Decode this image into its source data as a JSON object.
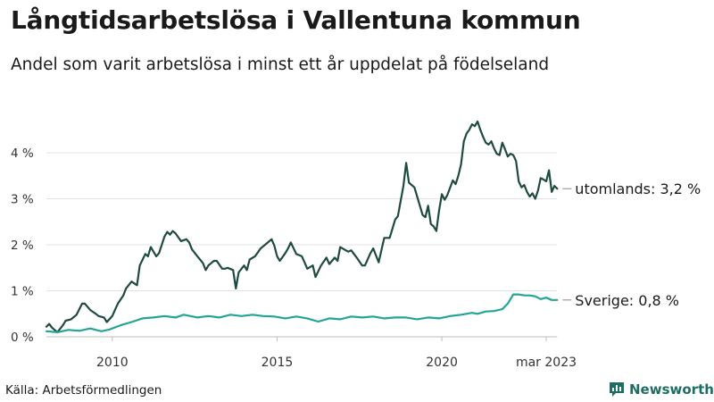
{
  "header": {
    "title": "Långtidsarbetslösa i Vallentuna kommun",
    "subtitle": "Andel som varit arbetslösa i minst ett år uppdelat på födelseland"
  },
  "footer": {
    "source": "Källa: Arbetsförmedlingen",
    "brand": "Newsworthy"
  },
  "colors": {
    "foreign": "#1f4a42",
    "sweden": "#22a594",
    "grid": "#e3e3e3",
    "brand": "#1d6d63"
  },
  "icons": {
    "brand_logo": "bar-chart-icon"
  },
  "chart_data": {
    "type": "line",
    "title": "Långtidsarbetslösa i Vallentuna kommun",
    "subtitle": "Andel som varit arbetslösa i minst ett år uppdelat på födelseland",
    "xlim": [
      "2008-01",
      "2023-03"
    ],
    "ylim": [
      0,
      4.7
    ],
    "y_ticks": [
      0,
      1,
      2,
      3,
      4
    ],
    "y_tick_labels": [
      "0 %",
      "1 %",
      "2 %",
      "3 %",
      "4 %"
    ],
    "x_ticks": [
      "2010-01",
      "2015-01",
      "2020-01",
      "2023-03"
    ],
    "x_tick_labels": [
      "2010",
      "2015",
      "2020",
      "mar 2023"
    ],
    "grid": "horizontal",
    "legend": "end-of-line labels",
    "series": [
      {
        "name": "utomlands",
        "end_label": "utomlands: 3,2 %",
        "color": "#1f4a42",
        "points": [
          [
            "2008-01",
            0.22
          ],
          [
            "2008-02",
            0.28
          ],
          [
            "2008-03",
            0.2
          ],
          [
            "2008-05",
            0.1
          ],
          [
            "2008-07",
            0.25
          ],
          [
            "2008-08",
            0.35
          ],
          [
            "2008-10",
            0.38
          ],
          [
            "2008-12",
            0.48
          ],
          [
            "2009-02",
            0.72
          ],
          [
            "2009-03",
            0.72
          ],
          [
            "2009-05",
            0.58
          ],
          [
            "2009-07",
            0.5
          ],
          [
            "2009-08",
            0.45
          ],
          [
            "2009-10",
            0.42
          ],
          [
            "2009-11",
            0.32
          ],
          [
            "2010-01",
            0.45
          ],
          [
            "2010-03",
            0.72
          ],
          [
            "2010-05",
            0.9
          ],
          [
            "2010-06",
            1.05
          ],
          [
            "2010-08",
            1.2
          ],
          [
            "2010-10",
            1.12
          ],
          [
            "2010-11",
            1.55
          ],
          [
            "2011-01",
            1.8
          ],
          [
            "2011-02",
            1.75
          ],
          [
            "2011-03",
            1.95
          ],
          [
            "2011-05",
            1.75
          ],
          [
            "2011-06",
            1.82
          ],
          [
            "2011-08",
            2.18
          ],
          [
            "2011-09",
            2.28
          ],
          [
            "2011-10",
            2.22
          ],
          [
            "2011-11",
            2.3
          ],
          [
            "2011-12",
            2.25
          ],
          [
            "2012-02",
            2.08
          ],
          [
            "2012-04",
            2.12
          ],
          [
            "2012-05",
            2.05
          ],
          [
            "2012-06",
            1.9
          ],
          [
            "2012-08",
            1.75
          ],
          [
            "2012-10",
            1.6
          ],
          [
            "2012-11",
            1.45
          ],
          [
            "2012-12",
            1.55
          ],
          [
            "2013-02",
            1.65
          ],
          [
            "2013-03",
            1.65
          ],
          [
            "2013-05",
            1.48
          ],
          [
            "2013-06",
            1.48
          ],
          [
            "2013-07",
            1.5
          ],
          [
            "2013-09",
            1.45
          ],
          [
            "2013-10",
            1.05
          ],
          [
            "2013-11",
            1.4
          ],
          [
            "2014-01",
            1.55
          ],
          [
            "2014-02",
            1.45
          ],
          [
            "2014-03",
            1.68
          ],
          [
            "2014-05",
            1.75
          ],
          [
            "2014-07",
            1.92
          ],
          [
            "2014-09",
            2.02
          ],
          [
            "2014-11",
            2.12
          ],
          [
            "2014-12",
            1.98
          ],
          [
            "2015-01",
            1.75
          ],
          [
            "2015-02",
            1.65
          ],
          [
            "2015-04",
            1.82
          ],
          [
            "2015-05",
            1.92
          ],
          [
            "2015-06",
            2.05
          ],
          [
            "2015-08",
            1.8
          ],
          [
            "2015-10",
            1.75
          ],
          [
            "2015-11",
            1.62
          ],
          [
            "2015-12",
            1.48
          ],
          [
            "2016-02",
            1.55
          ],
          [
            "2016-03",
            1.3
          ],
          [
            "2016-05",
            1.55
          ],
          [
            "2016-07",
            1.72
          ],
          [
            "2016-08",
            1.58
          ],
          [
            "2016-10",
            1.72
          ],
          [
            "2016-11",
            1.65
          ],
          [
            "2016-12",
            1.95
          ],
          [
            "2017-02",
            1.88
          ],
          [
            "2017-03",
            1.85
          ],
          [
            "2017-04",
            1.88
          ],
          [
            "2017-06",
            1.72
          ],
          [
            "2017-08",
            1.55
          ],
          [
            "2017-09",
            1.55
          ],
          [
            "2017-11",
            1.82
          ],
          [
            "2017-12",
            1.92
          ],
          [
            "2018-02",
            1.62
          ],
          [
            "2018-04",
            2.15
          ],
          [
            "2018-06",
            2.15
          ],
          [
            "2018-08",
            2.55
          ],
          [
            "2018-09",
            2.62
          ],
          [
            "2018-11",
            3.28
          ],
          [
            "2018-12",
            3.78
          ],
          [
            "2019-01",
            3.35
          ],
          [
            "2019-03",
            3.25
          ],
          [
            "2019-04",
            3.05
          ],
          [
            "2019-06",
            2.65
          ],
          [
            "2019-07",
            2.6
          ],
          [
            "2019-08",
            2.85
          ],
          [
            "2019-09",
            2.45
          ],
          [
            "2019-10",
            2.4
          ],
          [
            "2019-11",
            2.3
          ],
          [
            "2019-12",
            2.75
          ],
          [
            "2020-01",
            3.1
          ],
          [
            "2020-02",
            2.98
          ],
          [
            "2020-03",
            3.08
          ],
          [
            "2020-05",
            3.4
          ],
          [
            "2020-06",
            3.32
          ],
          [
            "2020-07",
            3.5
          ],
          [
            "2020-08",
            3.75
          ],
          [
            "2020-09",
            4.25
          ],
          [
            "2020-10",
            4.42
          ],
          [
            "2020-11",
            4.5
          ],
          [
            "2020-12",
            4.62
          ],
          [
            "2021-01",
            4.58
          ],
          [
            "2021-02",
            4.68
          ],
          [
            "2021-03",
            4.5
          ],
          [
            "2021-04",
            4.35
          ],
          [
            "2021-05",
            4.22
          ],
          [
            "2021-06",
            4.18
          ],
          [
            "2021-07",
            4.25
          ],
          [
            "2021-08",
            4.1
          ],
          [
            "2021-09",
            3.98
          ],
          [
            "2021-10",
            3.95
          ],
          [
            "2021-11",
            4.22
          ],
          [
            "2021-12",
            4.08
          ],
          [
            "2022-01",
            3.92
          ],
          [
            "2022-02",
            3.98
          ],
          [
            "2022-03",
            3.95
          ],
          [
            "2022-04",
            3.82
          ],
          [
            "2022-05",
            3.38
          ],
          [
            "2022-06",
            3.25
          ],
          [
            "2022-07",
            3.3
          ],
          [
            "2022-08",
            3.15
          ],
          [
            "2022-09",
            3.05
          ],
          [
            "2022-10",
            3.12
          ],
          [
            "2022-11",
            3.0
          ],
          [
            "2022-12",
            3.18
          ],
          [
            "2023-01",
            3.45
          ],
          [
            "2023-02",
            3.42
          ],
          [
            "2023-03",
            3.38
          ],
          [
            "2023-04",
            3.62
          ],
          [
            "2023-05",
            3.15
          ],
          [
            "2023-06",
            3.28
          ],
          [
            "2023-07",
            3.22
          ]
        ]
      },
      {
        "name": "Sverige",
        "end_label": "Sverige: 0,8 %",
        "color": "#22a594",
        "points": [
          [
            "2008-01",
            0.12
          ],
          [
            "2008-05",
            0.1
          ],
          [
            "2008-09",
            0.15
          ],
          [
            "2009-01",
            0.13
          ],
          [
            "2009-05",
            0.18
          ],
          [
            "2009-09",
            0.12
          ],
          [
            "2009-12",
            0.16
          ],
          [
            "2010-04",
            0.25
          ],
          [
            "2010-08",
            0.32
          ],
          [
            "2010-12",
            0.4
          ],
          [
            "2011-04",
            0.42
          ],
          [
            "2011-08",
            0.45
          ],
          [
            "2011-12",
            0.42
          ],
          [
            "2012-03",
            0.48
          ],
          [
            "2012-08",
            0.42
          ],
          [
            "2012-12",
            0.45
          ],
          [
            "2013-04",
            0.42
          ],
          [
            "2013-08",
            0.48
          ],
          [
            "2013-12",
            0.45
          ],
          [
            "2014-04",
            0.48
          ],
          [
            "2014-08",
            0.45
          ],
          [
            "2014-12",
            0.44
          ],
          [
            "2015-04",
            0.4
          ],
          [
            "2015-08",
            0.44
          ],
          [
            "2015-12",
            0.4
          ],
          [
            "2016-04",
            0.33
          ],
          [
            "2016-08",
            0.4
          ],
          [
            "2016-12",
            0.38
          ],
          [
            "2017-04",
            0.44
          ],
          [
            "2017-08",
            0.42
          ],
          [
            "2017-12",
            0.44
          ],
          [
            "2018-04",
            0.4
          ],
          [
            "2018-08",
            0.42
          ],
          [
            "2018-12",
            0.42
          ],
          [
            "2019-04",
            0.38
          ],
          [
            "2019-08",
            0.42
          ],
          [
            "2019-12",
            0.4
          ],
          [
            "2020-04",
            0.45
          ],
          [
            "2020-08",
            0.48
          ],
          [
            "2020-12",
            0.52
          ],
          [
            "2021-02",
            0.5
          ],
          [
            "2021-05",
            0.55
          ],
          [
            "2021-08",
            0.56
          ],
          [
            "2021-11",
            0.6
          ],
          [
            "2022-01",
            0.72
          ],
          [
            "2022-03",
            0.92
          ],
          [
            "2022-05",
            0.92
          ],
          [
            "2022-07",
            0.9
          ],
          [
            "2022-09",
            0.9
          ],
          [
            "2022-11",
            0.88
          ],
          [
            "2023-01",
            0.82
          ],
          [
            "2023-03",
            0.85
          ],
          [
            "2023-05",
            0.8
          ],
          [
            "2023-07",
            0.8
          ]
        ]
      }
    ]
  }
}
